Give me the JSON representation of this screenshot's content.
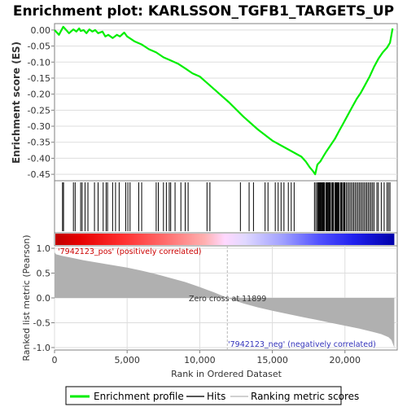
{
  "chart_data": [
    {
      "type": "line",
      "title": "Enrichment plot: KARLSSON_TGFB1_TARGETS_UP",
      "ylabel": "Enrichment score (ES)",
      "xlim": [
        0,
        23600
      ],
      "ylim": [
        -0.47,
        0.02
      ],
      "yticks": [
        0.0,
        -0.05,
        -0.1,
        -0.15,
        -0.2,
        -0.25,
        -0.3,
        -0.35,
        -0.4,
        -0.45
      ],
      "ytick_labels": [
        "0.00",
        "-0.05",
        "-0.10",
        "-0.15",
        "-0.20",
        "-0.25",
        "-0.30",
        "-0.35",
        "-0.40",
        "-0.45"
      ],
      "grid": true,
      "color": "#00ee00",
      "series": [
        {
          "name": "Enrichment profile",
          "x": [
            0,
            300,
            600,
            700,
            1000,
            1300,
            1500,
            1700,
            1800,
            2000,
            2200,
            2400,
            2600,
            2800,
            3000,
            3300,
            3500,
            3700,
            4000,
            4300,
            4500,
            4800,
            5000,
            5500,
            6000,
            6500,
            7000,
            7500,
            8000,
            8500,
            9000,
            9500,
            10000,
            11000,
            12000,
            13000,
            14000,
            15000,
            16000,
            17000,
            17300,
            17600,
            17800,
            17950,
            18100,
            18300,
            18500,
            18700,
            19000,
            19300,
            19600,
            19900,
            20200,
            20500,
            20800,
            21100,
            21400,
            21700,
            22000,
            22300,
            22600,
            22900,
            23100,
            23200,
            23280
          ],
          "y": [
            0.0,
            -0.015,
            0.01,
            0.005,
            -0.01,
            0.002,
            -0.005,
            0.005,
            -0.003,
            0.0,
            -0.01,
            0.002,
            -0.005,
            0.0,
            -0.01,
            -0.005,
            -0.02,
            -0.015,
            -0.025,
            -0.015,
            -0.02,
            -0.008,
            -0.02,
            -0.035,
            -0.045,
            -0.06,
            -0.07,
            -0.085,
            -0.095,
            -0.105,
            -0.12,
            -0.135,
            -0.145,
            -0.185,
            -0.225,
            -0.27,
            -0.31,
            -0.345,
            -0.37,
            -0.395,
            -0.41,
            -0.43,
            -0.44,
            -0.45,
            -0.42,
            -0.41,
            -0.395,
            -0.38,
            -0.36,
            -0.34,
            -0.315,
            -0.29,
            -0.265,
            -0.24,
            -0.215,
            -0.195,
            -0.17,
            -0.145,
            -0.115,
            -0.09,
            -0.07,
            -0.055,
            -0.04,
            -0.015,
            0.005
          ]
        }
      ]
    },
    {
      "type": "scatter",
      "name": "Hits",
      "xlim": [
        0,
        23600
      ],
      "hits": [
        550,
        620,
        1300,
        1420,
        1800,
        1900,
        2100,
        2300,
        2750,
        3000,
        3350,
        3550,
        3650,
        4000,
        4200,
        4450,
        4900,
        5050,
        5200,
        5800,
        6000,
        7000,
        7150,
        7500,
        7700,
        7900,
        8000,
        8300,
        8700,
        9000,
        9200,
        10500,
        10700,
        12800,
        13400,
        13700,
        14500,
        14700,
        15200,
        15400,
        15600,
        15800,
        16100,
        16300,
        16500,
        17900,
        18000,
        18100,
        18150,
        18200,
        18250,
        18300,
        18350,
        18400,
        18450,
        18500,
        18550,
        18600,
        18700,
        18750,
        18800,
        18850,
        18900,
        18950,
        19000,
        19100,
        19150,
        19200,
        19300,
        19350,
        19400,
        19450,
        19500,
        19550,
        19600,
        19700,
        19750,
        19800,
        19900,
        19950,
        20000,
        20100,
        20200,
        20300,
        20400,
        20500,
        20600,
        20700,
        20800,
        20900,
        21000,
        21100,
        21200,
        21300,
        21400,
        21500,
        21600,
        21700,
        21800,
        21900,
        22000,
        22200,
        22300,
        22500,
        22700,
        22900,
        23000,
        23100
      ]
    },
    {
      "type": "area",
      "name": "Ranking metric scores",
      "ylabel": "Ranked list metric (Pearson)",
      "xlabel": "Rank in Ordered Dataset",
      "xlim": [
        0,
        23600
      ],
      "ylim": [
        -1.05,
        1.05
      ],
      "xticks": [
        0,
        5000,
        10000,
        15000,
        20000
      ],
      "xtick_labels": [
        "0",
        "5,000",
        "10,000",
        "15,000",
        "20,000"
      ],
      "yticks": [
        1.0,
        0.5,
        0.0,
        -0.5,
        -1.0
      ],
      "ytick_labels": [
        "1.0",
        "0.5",
        "0.0",
        "-0.5",
        "-1.0"
      ],
      "color": "#b0b0b0",
      "x": [
        0,
        100,
        500,
        1000,
        2000,
        3000,
        4000,
        5000,
        6000,
        7000,
        8000,
        9000,
        10000,
        11000,
        11899,
        13000,
        14000,
        15000,
        16000,
        17000,
        18000,
        19000,
        20000,
        21000,
        22000,
        22500,
        23000,
        23200,
        23400
      ],
      "values": [
        0.92,
        0.88,
        0.85,
        0.82,
        0.76,
        0.71,
        0.66,
        0.61,
        0.55,
        0.48,
        0.4,
        0.32,
        0.22,
        0.11,
        0.0,
        -0.11,
        -0.19,
        -0.26,
        -0.32,
        -0.38,
        -0.44,
        -0.5,
        -0.56,
        -0.62,
        -0.69,
        -0.73,
        -0.79,
        -0.85,
        -1.0
      ],
      "annotations": {
        "pos": "'7942123_pos' (positively correlated)",
        "neg": "'7942123_neg' (negatively correlated)",
        "zero": "Zero cross at 11899"
      },
      "zero_cross": 11899
    }
  ],
  "legend": {
    "items": [
      {
        "label": "Enrichment profile",
        "color": "#00ee00"
      },
      {
        "label": "Hits",
        "color": "#555555"
      },
      {
        "label": "Ranking metric scores",
        "color": "#d0d0d0"
      }
    ]
  },
  "colors": {
    "profile": "#00ee00",
    "hit": "#000000",
    "metric_fill": "#b0b0b0",
    "pos_text": "#cc0000",
    "neg_text": "#3333bb",
    "grid": "#dddddd",
    "frame": "#808080"
  }
}
